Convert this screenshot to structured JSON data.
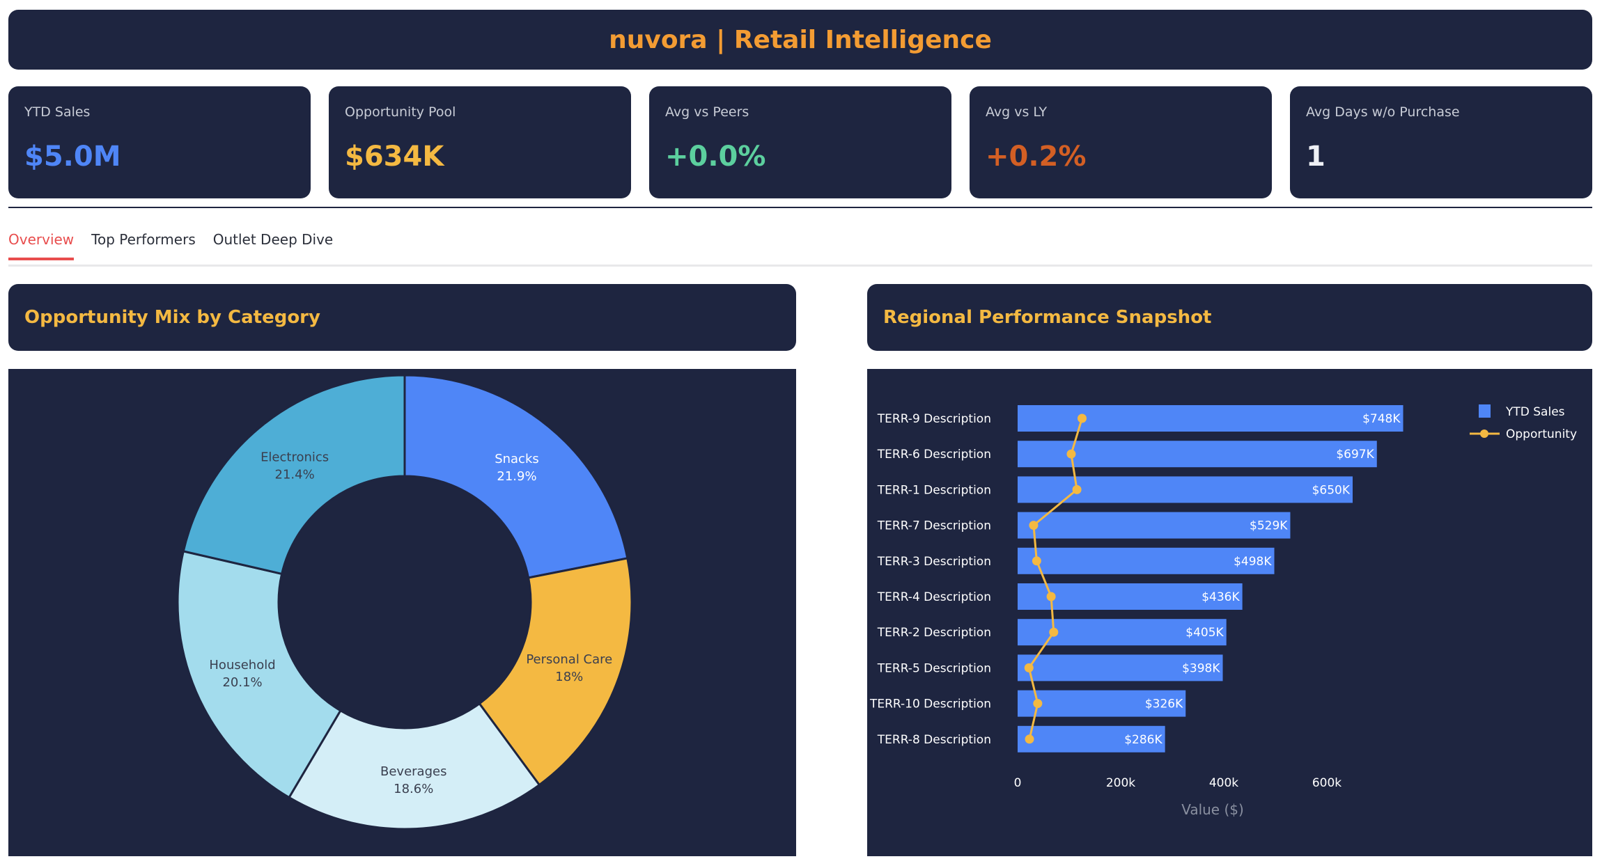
{
  "header": {
    "title": "nuvora | Retail Intelligence"
  },
  "kpis": [
    {
      "label": "YTD Sales",
      "value": "$5.0M",
      "color": "#4f86f7"
    },
    {
      "label": "Opportunity Pool",
      "value": "$634K",
      "color": "#f4b942"
    },
    {
      "label": "Avg vs Peers",
      "value": "+0.0%",
      "color": "#5ccf9e"
    },
    {
      "label": "Avg vs LY",
      "value": "+0.2%",
      "color": "#d35f24"
    },
    {
      "label": "Avg Days w/o Purchase",
      "value": "1",
      "color": "#eef0f5"
    }
  ],
  "tabs": [
    {
      "label": "Overview",
      "active": true
    },
    {
      "label": "Top Performers"
    },
    {
      "label": "Outlet Deep Dive"
    }
  ],
  "panels": {
    "left_title": "Opportunity Mix by Category",
    "right_title": "Regional Performance Snapshot"
  },
  "chart_data": [
    {
      "type": "pie",
      "hole": true,
      "categories": [
        "Snacks",
        "Personal Care",
        "Beverages",
        "Household",
        "Electronics"
      ],
      "values": [
        21.9,
        18,
        18.6,
        20.1,
        21.4
      ],
      "labels": [
        "21.9%",
        "18%",
        "18.6%",
        "20.1%",
        "21.4%"
      ],
      "colors": [
        "#4f86f7",
        "#f4b942",
        "#d4eef7",
        "#a3dced",
        "#4eaed6"
      ]
    },
    {
      "type": "bar",
      "orientation": "horizontal",
      "categories": [
        "TERR-9 Description",
        "TERR-6 Description",
        "TERR-1 Description",
        "TERR-7 Description",
        "TERR-3 Description",
        "TERR-4 Description",
        "TERR-2 Description",
        "TERR-5 Description",
        "TERR-10 Description",
        "TERR-8 Description"
      ],
      "series": [
        {
          "name": "YTD Sales",
          "type": "bar",
          "color": "#4f86f7",
          "values": [
            748000,
            697000,
            650000,
            529000,
            498000,
            436000,
            405000,
            398000,
            326000,
            286000
          ],
          "labels": [
            "$748K",
            "$697K",
            "$650K",
            "$529K",
            "$498K",
            "$436K",
            "$405K",
            "$398K",
            "$326K",
            "$286K"
          ]
        },
        {
          "name": "Opportunity",
          "type": "line",
          "color": "#f4b942",
          "values": [
            125000,
            104000,
            115000,
            31000,
            37000,
            65000,
            70000,
            22000,
            39000,
            23000
          ]
        }
      ],
      "xlabel": "Value ($)",
      "xticks": [
        0,
        200000,
        400000,
        600000
      ],
      "xtick_labels": [
        "0",
        "200k",
        "400k",
        "600k"
      ],
      "xlim": [
        0,
        820000
      ],
      "legend": "top-right"
    }
  ]
}
